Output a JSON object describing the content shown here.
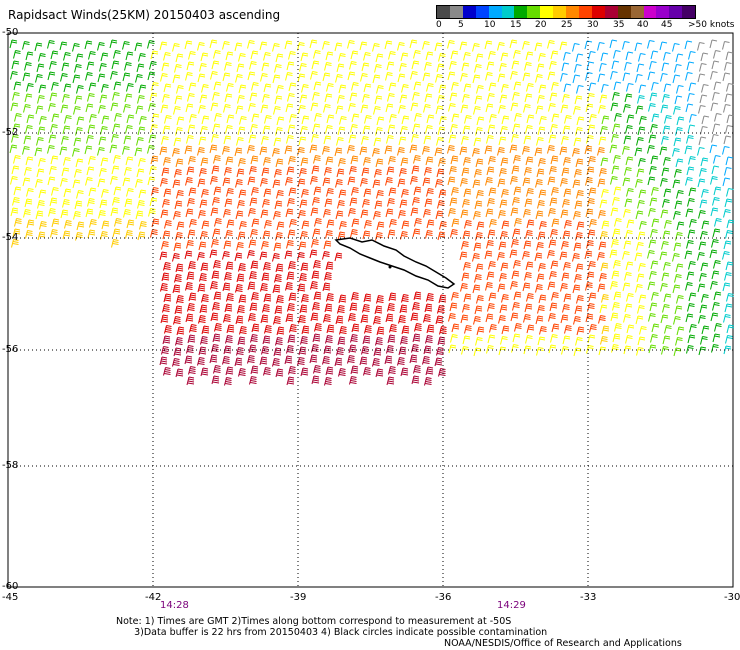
{
  "title": "Rapidsact Winds(25KM) 20150403 ascending",
  "legend": {
    "colors": [
      "#4a4a4a",
      "#8a8a8a",
      "#0000cc",
      "#0044ff",
      "#00aaff",
      "#00cccc",
      "#00aa00",
      "#66dd00",
      "#ffff00",
      "#ffcc00",
      "#ff8800",
      "#ff4400",
      "#dd0000",
      "#aa0033",
      "#663300",
      "#996633",
      "#cc00cc",
      "#9900cc",
      "#6600aa",
      "#440066"
    ],
    "labels": [
      "0",
      "5",
      "10",
      "15",
      "20",
      "25",
      "30",
      "35",
      "40",
      "45",
      ">50 knots"
    ],
    "unit": "knots"
  },
  "lat_labels": [
    "-50",
    "-52",
    "-54",
    "-56",
    "-58",
    "-60"
  ],
  "lon_labels": [
    "-45",
    "-42",
    "-39",
    "-36",
    "-33",
    "-30"
  ],
  "times": [
    "14:28",
    "14:29"
  ],
  "notes": "Note: 1) Times are GMT 2)Times along bottom correspond to measurement at -50S\n      3)Data buffer is 22 hrs from 20150403 4) Black circles indicate possible contamination",
  "credit": "NOAA/NESDIS/Office of Research and Applications",
  "map": {
    "lon_range": [
      -45,
      -30
    ],
    "lat_range": [
      -60,
      -50
    ],
    "grid": true,
    "land": "South Georgia island"
  }
}
